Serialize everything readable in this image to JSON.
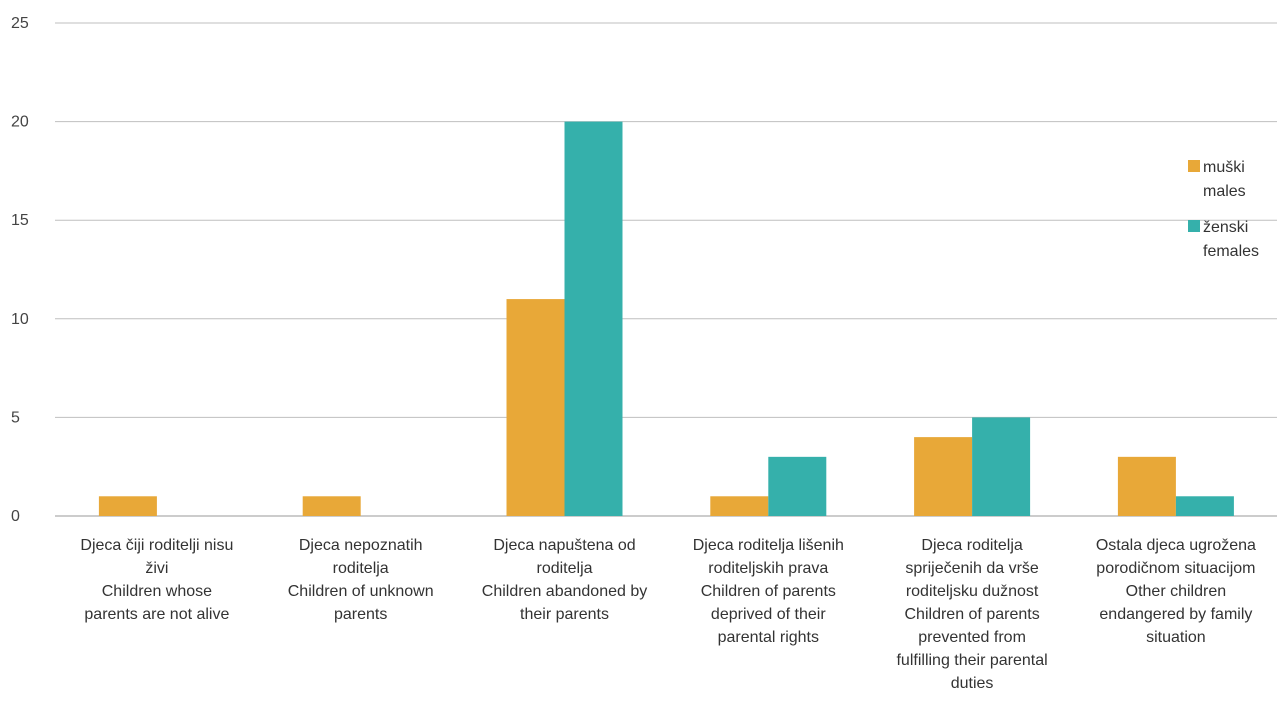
{
  "chart_data": {
    "type": "bar",
    "categories": [
      [
        "Djeca čiji roditelji nisu",
        "živi",
        "Children  whose",
        "parents are not alive"
      ],
      [
        "Djeca nepoznatih",
        "roditelja",
        "Children of unknown",
        "parents"
      ],
      [
        "Djeca napuštena od",
        "roditelja",
        "Children abandoned by",
        "their parents"
      ],
      [
        "Djeca roditelja lišenih",
        "roditeljskih prava",
        "Children of parents",
        "deprived of their",
        "parental rights"
      ],
      [
        "Djeca roditelja",
        "spriječenih da vrše",
        "roditeljsku dužnost",
        "Children of parents",
        "prevented from",
        "fulfilling their parental",
        "duties"
      ],
      [
        "Ostala djeca ugrožena",
        "porodičnom situacijom",
        "Other children",
        "endangered by family",
        "situation"
      ]
    ],
    "series": [
      {
        "name": [
          "muški",
          "males"
        ],
        "color": "#E8A838",
        "values": [
          1,
          1,
          11,
          1,
          4,
          3
        ]
      },
      {
        "name": [
          "ženski",
          "females"
        ],
        "color": "#35B0AB",
        "values": [
          0,
          0,
          20,
          3,
          5,
          1
        ]
      }
    ],
    "ylim": [
      0,
      25
    ],
    "yticks": [
      "0",
      "5",
      "10",
      "15",
      "20",
      "25"
    ],
    "grid": true,
    "legend_position": "right"
  }
}
